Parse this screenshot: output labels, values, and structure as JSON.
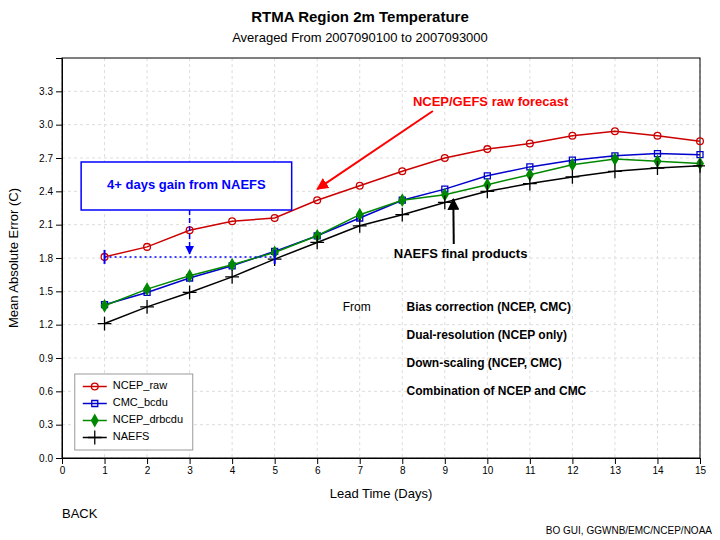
{
  "chart_data": {
    "type": "line",
    "title": "RTMA Region 2m Temperature",
    "subtitle": "Averaged From 2007090100 to 2007093000",
    "xlabel": "Lead Time (Days)",
    "ylabel": "Mean Absolute Error (C)",
    "x": [
      1,
      2,
      3,
      4,
      5,
      6,
      7,
      8,
      9,
      10,
      11,
      12,
      13,
      14,
      15
    ],
    "series": [
      {
        "name": "NCEP_raw",
        "color": "#cc0000",
        "marker": "circle-open",
        "values": [
          1.81,
          1.9,
          2.05,
          2.13,
          2.16,
          2.32,
          2.45,
          2.58,
          2.7,
          2.78,
          2.83,
          2.9,
          2.94,
          2.9,
          2.85
        ]
      },
      {
        "name": "CMC_bcdu",
        "color": "#0000cc",
        "marker": "square-open",
        "values": [
          1.38,
          1.49,
          1.62,
          1.73,
          1.86,
          2.0,
          2.16,
          2.32,
          2.42,
          2.54,
          2.62,
          2.68,
          2.72,
          2.74,
          2.73
        ]
      },
      {
        "name": "NCEP_drbcdu",
        "color": "#008800",
        "marker": "diamond",
        "values": [
          1.37,
          1.52,
          1.64,
          1.74,
          1.85,
          2.0,
          2.19,
          2.32,
          2.37,
          2.46,
          2.55,
          2.64,
          2.69,
          2.67,
          2.65
        ]
      },
      {
        "name": "NAEFS",
        "color": "#000000",
        "marker": "plus",
        "values": [
          1.21,
          1.36,
          1.49,
          1.63,
          1.79,
          1.94,
          2.09,
          2.19,
          2.3,
          2.4,
          2.47,
          2.53,
          2.58,
          2.61,
          2.63
        ]
      }
    ],
    "xlim": [
      0,
      15
    ],
    "ylim": [
      0,
      3.6
    ],
    "xticks": [
      0,
      1,
      2,
      3,
      4,
      5,
      6,
      7,
      8,
      9,
      10,
      11,
      12,
      13,
      14,
      15
    ],
    "yticks": [
      {
        "value": 0,
        "label": "0.0"
      },
      0.3,
      0.6,
      0.9,
      1.2,
      1.5,
      1.8,
      2.1,
      2.4,
      2.7,
      {
        "value": 3,
        "label": "3.0"
      },
      3.3
    ],
    "grid": true,
    "legend": "lower left",
    "annotations": [
      {
        "text": "NCEP/GEFS raw forecast",
        "x": 6,
        "y": 2.42,
        "color": "red"
      },
      {
        "text": "NAEFS final products",
        "x": 9.2,
        "y": 2.33,
        "color": "black"
      },
      {
        "text": "4+ days gain from NAEFS",
        "x": [
          1,
          5
        ],
        "y": 1.81,
        "color": "blue"
      },
      {
        "text": "From",
        "items": [
          "Bias correction (NCEP, CMC)",
          "Dual-resolution (NCEP only)",
          "Down-scaling (NCEP, CMC)",
          "Combination of NCEP and CMC"
        ]
      },
      {
        "text": "BACK"
      },
      {
        "text": "BO GUI, GGWNB/EMC/NCEP/NOAA"
      }
    ]
  }
}
